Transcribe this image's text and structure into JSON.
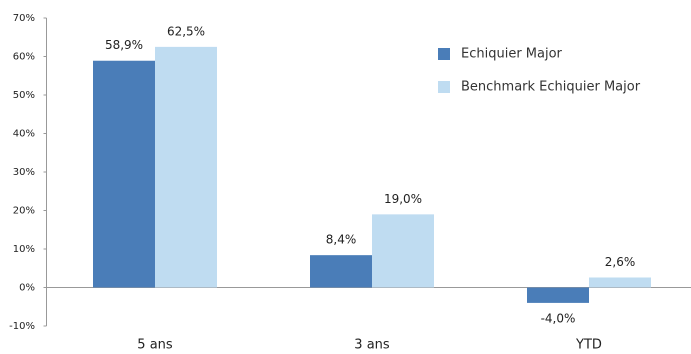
{
  "chart_data": {
    "type": "bar",
    "categories": [
      "5 ans",
      "3 ans",
      "YTD"
    ],
    "series": [
      {
        "name": "Echiquier Major",
        "color": "#4a7db8",
        "values": [
          58.9,
          8.4,
          -4.0
        ],
        "value_labels": [
          "58,9%",
          "8,4%",
          "-4,0%"
        ]
      },
      {
        "name": "Benchmark Echiquier Major",
        "color": "#bfdcf1",
        "values": [
          62.5,
          19.0,
          2.6
        ],
        "value_labels": [
          "62,5%",
          "19,0%",
          "2,6%"
        ]
      }
    ],
    "ylim": [
      -10,
      70
    ],
    "yticks": [
      {
        "value": -10,
        "label": "-10%"
      },
      {
        "value": 0,
        "label": "0%"
      },
      {
        "value": 10,
        "label": "10%"
      },
      {
        "value": 20,
        "label": "20%"
      },
      {
        "value": 30,
        "label": "30%"
      },
      {
        "value": 40,
        "label": "40%"
      },
      {
        "value": 50,
        "label": "50%"
      },
      {
        "value": 60,
        "label": "60%"
      },
      {
        "value": 70,
        "label": "70%"
      }
    ],
    "legend": "top-right"
  }
}
